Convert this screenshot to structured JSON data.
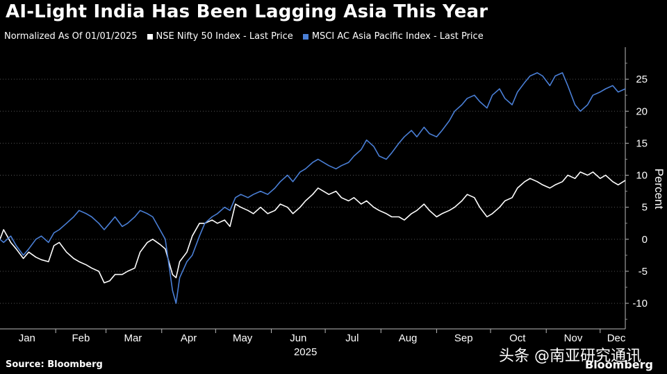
{
  "title": "AI-Light India Has Been Lagging Asia This Year",
  "legend": {
    "prefix": "Normalized As Of 01/01/2025",
    "items": [
      {
        "label": "NSE Nifty 50 Index - Last Price",
        "color": "#ffffff"
      },
      {
        "label": "MSCI AC Asia Pacific Index - Last Price",
        "color": "#4a7fd6"
      }
    ]
  },
  "source": "Source: Bloomberg",
  "watermark": "头条 @南亚研究通讯",
  "brand": "Bloomberg",
  "chart_data": {
    "type": "line",
    "year_label": "2025",
    "ylabel": "Percent",
    "ylim": [
      -14,
      30
    ],
    "yticks": [
      -10,
      -5,
      0,
      5,
      10,
      15,
      20,
      25
    ],
    "xlim": [
      "2025-01-01",
      "2025-12-15"
    ],
    "month_ticks": [
      {
        "label": "Jan",
        "date": "2025-01-16"
      },
      {
        "label": "Feb",
        "date": "2025-02-15"
      },
      {
        "label": "Mar",
        "date": "2025-03-16"
      },
      {
        "label": "Apr",
        "date": "2025-04-16"
      },
      {
        "label": "May",
        "date": "2025-05-16"
      },
      {
        "label": "Jun",
        "date": "2025-06-16"
      },
      {
        "label": "Jul",
        "date": "2025-07-16"
      },
      {
        "label": "Aug",
        "date": "2025-08-16"
      },
      {
        "label": "Sep",
        "date": "2025-09-16"
      },
      {
        "label": "Oct",
        "date": "2025-10-16"
      },
      {
        "label": "Nov",
        "date": "2025-11-16"
      },
      {
        "label": "Dec",
        "date": "2025-12-10"
      }
    ],
    "grid": true,
    "series": [
      {
        "name": "NSE Nifty 50 Index - Last Price",
        "color": "#ffffff",
        "points": [
          [
            "2025-01-01",
            0
          ],
          [
            "2025-01-03",
            1.5
          ],
          [
            "2025-01-07",
            -0.5
          ],
          [
            "2025-01-10",
            -1.5
          ],
          [
            "2025-01-14",
            -3.0
          ],
          [
            "2025-01-17",
            -2.0
          ],
          [
            "2025-01-21",
            -2.8
          ],
          [
            "2025-01-24",
            -3.2
          ],
          [
            "2025-01-28",
            -3.5
          ],
          [
            "2025-01-31",
            -1.0
          ],
          [
            "2025-02-03",
            -0.5
          ],
          [
            "2025-02-07",
            -2.0
          ],
          [
            "2025-02-11",
            -3.0
          ],
          [
            "2025-02-14",
            -3.5
          ],
          [
            "2025-02-18",
            -4.0
          ],
          [
            "2025-02-21",
            -4.5
          ],
          [
            "2025-02-25",
            -5.0
          ],
          [
            "2025-02-28",
            -6.8
          ],
          [
            "2025-03-03",
            -6.5
          ],
          [
            "2025-03-06",
            -5.5
          ],
          [
            "2025-03-10",
            -5.5
          ],
          [
            "2025-03-13",
            -5.0
          ],
          [
            "2025-03-17",
            -4.5
          ],
          [
            "2025-03-20",
            -2.0
          ],
          [
            "2025-03-24",
            -0.5
          ],
          [
            "2025-03-27",
            0.0
          ],
          [
            "2025-03-31",
            -0.8
          ],
          [
            "2025-04-03",
            -1.5
          ],
          [
            "2025-04-07",
            -5.5
          ],
          [
            "2025-04-09",
            -6.0
          ],
          [
            "2025-04-11",
            -3.5
          ],
          [
            "2025-04-15",
            -2.0
          ],
          [
            "2025-04-18",
            0.5
          ],
          [
            "2025-04-22",
            2.5
          ],
          [
            "2025-04-25",
            2.5
          ],
          [
            "2025-04-29",
            3.0
          ],
          [
            "2025-05-02",
            2.5
          ],
          [
            "2025-05-06",
            3.0
          ],
          [
            "2025-05-09",
            2.0
          ],
          [
            "2025-05-12",
            5.5
          ],
          [
            "2025-05-15",
            5.0
          ],
          [
            "2025-05-19",
            4.5
          ],
          [
            "2025-05-22",
            4.0
          ],
          [
            "2025-05-26",
            5.0
          ],
          [
            "2025-05-30",
            4.0
          ],
          [
            "2025-06-03",
            4.5
          ],
          [
            "2025-06-06",
            5.5
          ],
          [
            "2025-06-10",
            5.0
          ],
          [
            "2025-06-13",
            4.0
          ],
          [
            "2025-06-17",
            5.0
          ],
          [
            "2025-06-20",
            6.0
          ],
          [
            "2025-06-24",
            7.0
          ],
          [
            "2025-06-27",
            8.0
          ],
          [
            "2025-06-30",
            7.5
          ],
          [
            "2025-07-03",
            7.0
          ],
          [
            "2025-07-07",
            7.5
          ],
          [
            "2025-07-10",
            6.5
          ],
          [
            "2025-07-14",
            6.0
          ],
          [
            "2025-07-17",
            6.5
          ],
          [
            "2025-07-21",
            5.5
          ],
          [
            "2025-07-24",
            6.0
          ],
          [
            "2025-07-28",
            5.0
          ],
          [
            "2025-07-31",
            4.5
          ],
          [
            "2025-08-04",
            4.0
          ],
          [
            "2025-08-07",
            3.5
          ],
          [
            "2025-08-11",
            3.5
          ],
          [
            "2025-08-14",
            3.0
          ],
          [
            "2025-08-18",
            4.0
          ],
          [
            "2025-08-21",
            4.5
          ],
          [
            "2025-08-25",
            5.5
          ],
          [
            "2025-08-28",
            4.5
          ],
          [
            "2025-09-01",
            3.5
          ],
          [
            "2025-09-04",
            4.0
          ],
          [
            "2025-09-08",
            4.5
          ],
          [
            "2025-09-11",
            5.0
          ],
          [
            "2025-09-15",
            6.0
          ],
          [
            "2025-09-18",
            7.0
          ],
          [
            "2025-09-22",
            6.5
          ],
          [
            "2025-09-25",
            5.0
          ],
          [
            "2025-09-29",
            3.5
          ],
          [
            "2025-10-02",
            4.0
          ],
          [
            "2025-10-06",
            5.0
          ],
          [
            "2025-10-09",
            6.0
          ],
          [
            "2025-10-13",
            6.5
          ],
          [
            "2025-10-16",
            8.0
          ],
          [
            "2025-10-20",
            9.0
          ],
          [
            "2025-10-23",
            9.5
          ],
          [
            "2025-10-27",
            9.0
          ],
          [
            "2025-10-30",
            8.5
          ],
          [
            "2025-11-03",
            8.0
          ],
          [
            "2025-11-06",
            8.5
          ],
          [
            "2025-11-10",
            9.0
          ],
          [
            "2025-11-13",
            10.0
          ],
          [
            "2025-11-17",
            9.5
          ],
          [
            "2025-11-20",
            10.5
          ],
          [
            "2025-11-24",
            10.0
          ],
          [
            "2025-11-27",
            10.5
          ],
          [
            "2025-12-01",
            9.5
          ],
          [
            "2025-12-04",
            10.0
          ],
          [
            "2025-12-08",
            9.0
          ],
          [
            "2025-12-11",
            8.5
          ],
          [
            "2025-12-15",
            9.2
          ]
        ]
      },
      {
        "name": "MSCI AC Asia Pacific Index - Last Price",
        "color": "#4a7fd6",
        "points": [
          [
            "2025-01-01",
            0
          ],
          [
            "2025-01-03",
            -0.5
          ],
          [
            "2025-01-07",
            0.5
          ],
          [
            "2025-01-10",
            -1.0
          ],
          [
            "2025-01-14",
            -2.5
          ],
          [
            "2025-01-17",
            -1.5
          ],
          [
            "2025-01-21",
            0.0
          ],
          [
            "2025-01-24",
            0.5
          ],
          [
            "2025-01-28",
            -0.5
          ],
          [
            "2025-01-31",
            1.0
          ],
          [
            "2025-02-03",
            1.5
          ],
          [
            "2025-02-07",
            2.5
          ],
          [
            "2025-02-11",
            3.5
          ],
          [
            "2025-02-14",
            4.5
          ],
          [
            "2025-02-18",
            4.0
          ],
          [
            "2025-02-21",
            3.5
          ],
          [
            "2025-02-25",
            2.5
          ],
          [
            "2025-02-28",
            1.5
          ],
          [
            "2025-03-03",
            2.5
          ],
          [
            "2025-03-06",
            3.5
          ],
          [
            "2025-03-10",
            2.0
          ],
          [
            "2025-03-13",
            2.5
          ],
          [
            "2025-03-17",
            3.5
          ],
          [
            "2025-03-20",
            4.5
          ],
          [
            "2025-03-24",
            4.0
          ],
          [
            "2025-03-27",
            3.5
          ],
          [
            "2025-03-31",
            1.5
          ],
          [
            "2025-04-03",
            0.0
          ],
          [
            "2025-04-07",
            -8.0
          ],
          [
            "2025-04-09",
            -10.0
          ],
          [
            "2025-04-11",
            -6.0
          ],
          [
            "2025-04-15",
            -3.5
          ],
          [
            "2025-04-18",
            -2.5
          ],
          [
            "2025-04-22",
            0.5
          ],
          [
            "2025-04-25",
            2.5
          ],
          [
            "2025-04-29",
            3.5
          ],
          [
            "2025-05-02",
            4.0
          ],
          [
            "2025-05-06",
            5.0
          ],
          [
            "2025-05-09",
            4.5
          ],
          [
            "2025-05-12",
            6.5
          ],
          [
            "2025-05-15",
            7.0
          ],
          [
            "2025-05-19",
            6.5
          ],
          [
            "2025-05-22",
            7.0
          ],
          [
            "2025-05-26",
            7.5
          ],
          [
            "2025-05-30",
            7.0
          ],
          [
            "2025-06-03",
            8.0
          ],
          [
            "2025-06-06",
            9.0
          ],
          [
            "2025-06-10",
            10.0
          ],
          [
            "2025-06-13",
            9.0
          ],
          [
            "2025-06-17",
            10.5
          ],
          [
            "2025-06-20",
            11.0
          ],
          [
            "2025-06-24",
            12.0
          ],
          [
            "2025-06-27",
            12.5
          ],
          [
            "2025-06-30",
            12.0
          ],
          [
            "2025-07-03",
            11.5
          ],
          [
            "2025-07-07",
            11.0
          ],
          [
            "2025-07-10",
            11.5
          ],
          [
            "2025-07-14",
            12.0
          ],
          [
            "2025-07-17",
            13.0
          ],
          [
            "2025-07-21",
            14.0
          ],
          [
            "2025-07-24",
            15.5
          ],
          [
            "2025-07-28",
            14.5
          ],
          [
            "2025-07-31",
            13.0
          ],
          [
            "2025-08-04",
            12.5
          ],
          [
            "2025-08-07",
            13.5
          ],
          [
            "2025-08-11",
            15.0
          ],
          [
            "2025-08-14",
            16.0
          ],
          [
            "2025-08-18",
            17.0
          ],
          [
            "2025-08-21",
            16.0
          ],
          [
            "2025-08-25",
            17.5
          ],
          [
            "2025-08-28",
            16.5
          ],
          [
            "2025-09-01",
            16.0
          ],
          [
            "2025-09-04",
            17.0
          ],
          [
            "2025-09-08",
            18.5
          ],
          [
            "2025-09-11",
            20.0
          ],
          [
            "2025-09-15",
            21.0
          ],
          [
            "2025-09-18",
            22.0
          ],
          [
            "2025-09-22",
            22.5
          ],
          [
            "2025-09-25",
            21.5
          ],
          [
            "2025-09-29",
            20.5
          ],
          [
            "2025-10-02",
            22.5
          ],
          [
            "2025-10-06",
            23.5
          ],
          [
            "2025-10-09",
            22.0
          ],
          [
            "2025-10-13",
            21.0
          ],
          [
            "2025-10-16",
            23.0
          ],
          [
            "2025-10-20",
            24.5
          ],
          [
            "2025-10-23",
            25.5
          ],
          [
            "2025-10-27",
            26.0
          ],
          [
            "2025-10-30",
            25.5
          ],
          [
            "2025-11-03",
            24.0
          ],
          [
            "2025-11-06",
            25.5
          ],
          [
            "2025-11-10",
            26.0
          ],
          [
            "2025-11-13",
            24.0
          ],
          [
            "2025-11-17",
            21.0
          ],
          [
            "2025-11-20",
            20.0
          ],
          [
            "2025-11-24",
            21.0
          ],
          [
            "2025-11-27",
            22.5
          ],
          [
            "2025-12-01",
            23.0
          ],
          [
            "2025-12-04",
            23.5
          ],
          [
            "2025-12-08",
            24.0
          ],
          [
            "2025-12-11",
            23.0
          ],
          [
            "2025-12-15",
            23.5
          ]
        ]
      }
    ]
  }
}
